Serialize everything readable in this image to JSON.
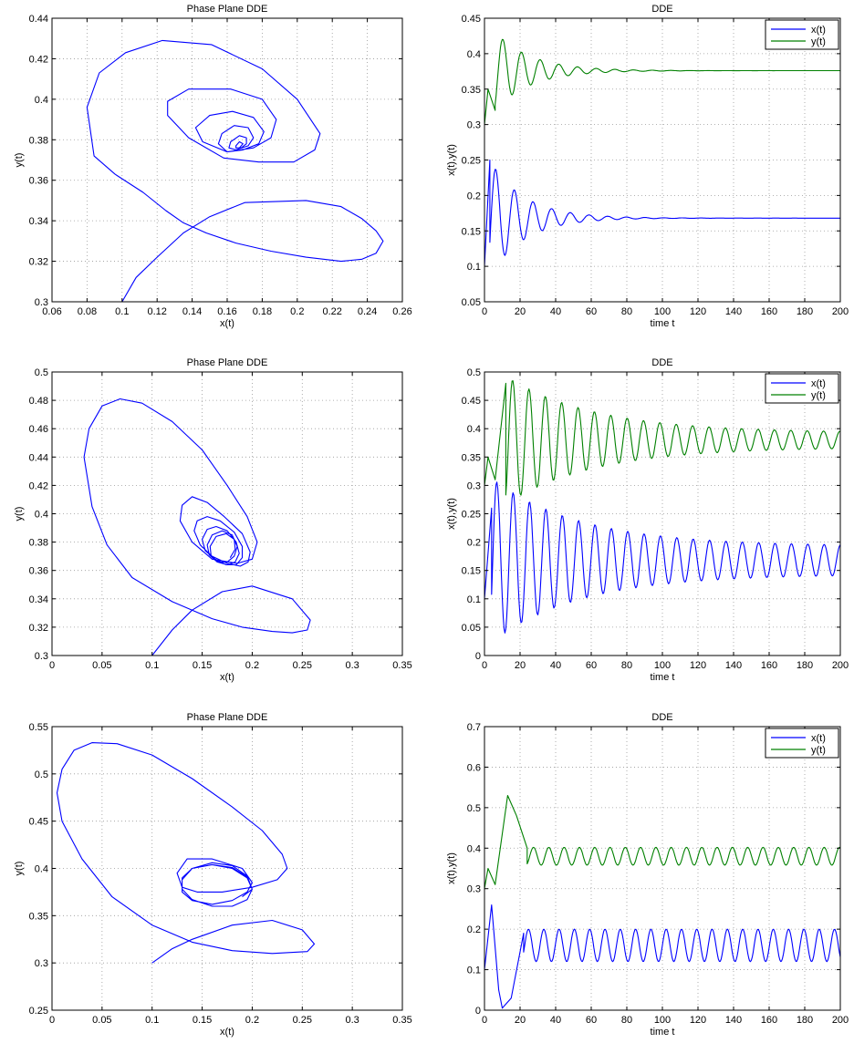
{
  "chart_data": [
    {
      "id": "pp1",
      "type": "line",
      "kind": "phase",
      "title": "Phase Plane DDE",
      "xlabel": "x(t)",
      "ylabel": "y(t)",
      "xlim": [
        0.06,
        0.26
      ],
      "ylim": [
        0.3,
        0.44
      ],
      "xticks": [
        0.06,
        0.08,
        0.1,
        0.12,
        0.14,
        0.16,
        0.18,
        0.2,
        0.22,
        0.24,
        0.26
      ],
      "yticks": [
        0.3,
        0.32,
        0.34,
        0.36,
        0.38,
        0.4,
        0.42,
        0.44
      ],
      "grid": true,
      "series": [
        {
          "color": "#0000ff",
          "x": [
            0.1,
            0.108,
            0.12,
            0.135,
            0.15,
            0.17,
            0.205,
            0.225,
            0.237,
            0.245,
            0.249,
            0.245,
            0.237,
            0.225,
            0.205,
            0.185,
            0.165,
            0.148,
            0.135,
            0.125,
            0.112,
            0.096,
            0.084,
            0.08,
            0.087,
            0.102,
            0.123,
            0.151,
            0.18,
            0.2,
            0.213,
            0.21,
            0.198,
            0.178,
            0.158,
            0.138,
            0.126,
            0.126,
            0.138,
            0.162,
            0.18,
            0.188,
            0.185,
            0.175,
            0.16,
            0.146,
            0.142,
            0.15,
            0.163,
            0.175,
            0.181,
            0.178,
            0.169,
            0.16,
            0.155,
            0.157,
            0.164,
            0.172,
            0.175,
            0.172,
            0.165,
            0.161,
            0.162,
            0.167,
            0.171,
            0.171,
            0.168,
            0.165,
            0.165,
            0.167,
            0.169,
            0.168,
            0.167,
            0.167
          ],
          "y": [
            0.3,
            0.312,
            0.322,
            0.334,
            0.342,
            0.349,
            0.35,
            0.347,
            0.341,
            0.335,
            0.33,
            0.324,
            0.321,
            0.32,
            0.322,
            0.325,
            0.329,
            0.334,
            0.339,
            0.345,
            0.354,
            0.363,
            0.372,
            0.396,
            0.413,
            0.423,
            0.429,
            0.427,
            0.415,
            0.4,
            0.383,
            0.375,
            0.369,
            0.369,
            0.371,
            0.381,
            0.392,
            0.399,
            0.405,
            0.405,
            0.4,
            0.39,
            0.381,
            0.376,
            0.374,
            0.379,
            0.386,
            0.392,
            0.394,
            0.391,
            0.384,
            0.378,
            0.375,
            0.374,
            0.378,
            0.383,
            0.387,
            0.386,
            0.381,
            0.377,
            0.375,
            0.376,
            0.379,
            0.382,
            0.381,
            0.378,
            0.376,
            0.376,
            0.377,
            0.379,
            0.378,
            0.377,
            0.376,
            0.376
          ]
        }
      ]
    },
    {
      "id": "ts1",
      "type": "line",
      "kind": "time",
      "title": "DDE",
      "xlabel": "time t",
      "ylabel": "x(t),y(t)",
      "xlim": [
        0,
        200
      ],
      "ylim": [
        0.05,
        0.45
      ],
      "xticks": [
        0,
        20,
        40,
        60,
        80,
        100,
        120,
        140,
        160,
        180,
        200
      ],
      "yticks": [
        0.05,
        0.1,
        0.15,
        0.2,
        0.25,
        0.3,
        0.35,
        0.4,
        0.45
      ],
      "grid": true,
      "legend": "top-right",
      "series": [
        {
          "name": "x(t)",
          "color": "#0000ff",
          "model": {
            "offset": 0.168,
            "amp": 0.082,
            "period": 10.5,
            "decay": 0.052,
            "phase": -2.0,
            "t0": 3,
            "pre": [
              [
                0,
                0.1
              ],
              [
                3,
                0.25
              ]
            ]
          }
        },
        {
          "name": "y(t)",
          "color": "#008000",
          "model": {
            "offset": 0.376,
            "amp": 0.055,
            "period": 10.5,
            "decay": 0.05,
            "phase": -2.6,
            "t0": 6,
            "pre": [
              [
                0,
                0.3
              ],
              [
                2,
                0.35
              ],
              [
                6,
                0.32
              ]
            ]
          }
        }
      ]
    },
    {
      "id": "pp2",
      "type": "line",
      "kind": "phase",
      "title": "Phase Plane DDE",
      "xlabel": "x(t)",
      "ylabel": "y(t)",
      "xlim": [
        0,
        0.35
      ],
      "ylim": [
        0.3,
        0.5
      ],
      "xticks": [
        0,
        0.05,
        0.1,
        0.15,
        0.2,
        0.25,
        0.3,
        0.35
      ],
      "yticks": [
        0.3,
        0.32,
        0.34,
        0.36,
        0.38,
        0.4,
        0.42,
        0.44,
        0.46,
        0.48,
        0.5
      ],
      "grid": true,
      "series": [
        {
          "color": "#0000ff",
          "x": [
            0.1,
            0.12,
            0.14,
            0.17,
            0.2,
            0.24,
            0.258,
            0.255,
            0.24,
            0.22,
            0.19,
            0.16,
            0.12,
            0.08,
            0.055,
            0.04,
            0.032,
            0.037,
            0.05,
            0.068,
            0.09,
            0.12,
            0.15,
            0.175,
            0.195,
            0.205,
            0.2,
            0.185,
            0.16,
            0.14,
            0.128,
            0.13,
            0.14,
            0.155,
            0.172,
            0.19,
            0.198,
            0.196,
            0.188,
            0.175,
            0.16,
            0.148,
            0.142,
            0.145,
            0.155,
            0.168,
            0.182,
            0.19,
            0.19,
            0.184,
            0.174,
            0.163,
            0.153,
            0.15,
            0.155,
            0.164,
            0.175,
            0.184,
            0.187,
            0.183,
            0.175,
            0.165,
            0.157,
            0.155,
            0.16,
            0.17,
            0.18,
            0.185,
            0.182,
            0.175,
            0.166,
            0.159,
            0.158,
            0.164,
            0.174,
            0.182,
            0.183,
            0.178
          ],
          "y": [
            0.3,
            0.318,
            0.332,
            0.345,
            0.349,
            0.34,
            0.325,
            0.318,
            0.316,
            0.317,
            0.32,
            0.326,
            0.338,
            0.355,
            0.378,
            0.405,
            0.44,
            0.46,
            0.476,
            0.481,
            0.478,
            0.465,
            0.445,
            0.42,
            0.398,
            0.38,
            0.368,
            0.365,
            0.368,
            0.38,
            0.395,
            0.406,
            0.412,
            0.408,
            0.398,
            0.386,
            0.373,
            0.366,
            0.363,
            0.365,
            0.37,
            0.378,
            0.388,
            0.395,
            0.398,
            0.395,
            0.387,
            0.377,
            0.369,
            0.364,
            0.364,
            0.368,
            0.374,
            0.382,
            0.389,
            0.391,
            0.388,
            0.38,
            0.372,
            0.366,
            0.364,
            0.366,
            0.371,
            0.378,
            0.385,
            0.388,
            0.385,
            0.377,
            0.37,
            0.366,
            0.366,
            0.37,
            0.377,
            0.384,
            0.386,
            0.382,
            0.375,
            0.369
          ]
        }
      ]
    },
    {
      "id": "ts2",
      "type": "line",
      "kind": "time",
      "title": "DDE",
      "xlabel": "time t",
      "ylabel": "x(t),y(t)",
      "xlim": [
        0,
        200
      ],
      "ylim": [
        0,
        0.5
      ],
      "xticks": [
        0,
        20,
        40,
        60,
        80,
        100,
        120,
        140,
        160,
        180,
        200
      ],
      "yticks": [
        0,
        0.05,
        0.1,
        0.15,
        0.2,
        0.25,
        0.3,
        0.35,
        0.4,
        0.45,
        0.5
      ],
      "grid": true,
      "legend": "top-right",
      "series": [
        {
          "name": "x(t)",
          "color": "#0000ff",
          "model": {
            "offset": 0.168,
            "amp": 0.12,
            "period": 9.2,
            "decay": 0.02,
            "floor": 0.025,
            "phase": -2.0,
            "t0": 4,
            "pre": [
              [
                0,
                0.1
              ],
              [
                4,
                0.26
              ]
            ]
          }
        },
        {
          "name": "y(t)",
          "color": "#008000",
          "model": {
            "offset": 0.38,
            "amp": 0.1,
            "period": 9.2,
            "decay": 0.02,
            "floor": 0.013,
            "phase": -2.6,
            "t0": 12,
            "pre": [
              [
                0,
                0.3
              ],
              [
                2,
                0.35
              ],
              [
                6,
                0.31
              ],
              [
                12,
                0.48
              ]
            ]
          }
        }
      ]
    },
    {
      "id": "pp3",
      "type": "line",
      "kind": "phase",
      "title": "Phase Plane DDE",
      "xlabel": "x(t)",
      "ylabel": "y(t)",
      "xlim": [
        0,
        0.35
      ],
      "ylim": [
        0.25,
        0.55
      ],
      "xticks": [
        0,
        0.05,
        0.1,
        0.15,
        0.2,
        0.25,
        0.3,
        0.35
      ],
      "yticks": [
        0.25,
        0.3,
        0.35,
        0.4,
        0.45,
        0.5,
        0.55
      ],
      "grid": true,
      "series": [
        {
          "color": "#0000ff",
          "x": [
            0.1,
            0.12,
            0.14,
            0.18,
            0.22,
            0.25,
            0.262,
            0.255,
            0.22,
            0.18,
            0.14,
            0.1,
            0.06,
            0.03,
            0.01,
            0.005,
            0.01,
            0.022,
            0.04,
            0.065,
            0.1,
            0.14,
            0.18,
            0.21,
            0.23,
            0.235,
            0.225,
            0.2,
            0.17,
            0.145,
            0.13,
            0.125,
            0.135,
            0.16,
            0.19,
            0.2,
            0.195,
            0.18,
            0.16,
            0.14,
            0.13,
            0.13,
            0.14,
            0.16,
            0.18,
            0.195,
            0.2,
            0.195,
            0.18,
            0.16,
            0.14,
            0.13,
            0.13,
            0.14,
            0.16,
            0.18,
            0.195,
            0.2,
            0.195,
            0.18,
            0.16,
            0.14,
            0.13,
            0.13,
            0.14,
            0.16,
            0.18,
            0.195,
            0.2,
            0.19
          ],
          "y": [
            0.3,
            0.315,
            0.325,
            0.34,
            0.345,
            0.335,
            0.32,
            0.312,
            0.31,
            0.313,
            0.322,
            0.34,
            0.37,
            0.41,
            0.45,
            0.48,
            0.505,
            0.525,
            0.533,
            0.532,
            0.52,
            0.495,
            0.465,
            0.44,
            0.415,
            0.4,
            0.388,
            0.38,
            0.375,
            0.375,
            0.38,
            0.395,
            0.41,
            0.41,
            0.4,
            0.385,
            0.375,
            0.366,
            0.362,
            0.366,
            0.375,
            0.388,
            0.4,
            0.406,
            0.403,
            0.392,
            0.378,
            0.367,
            0.36,
            0.36,
            0.367,
            0.378,
            0.39,
            0.4,
            0.404,
            0.401,
            0.391,
            0.378,
            0.367,
            0.36,
            0.36,
            0.367,
            0.378,
            0.39,
            0.4,
            0.404,
            0.4,
            0.39,
            0.378,
            0.37
          ]
        }
      ]
    },
    {
      "id": "ts3",
      "type": "line",
      "kind": "time",
      "title": "DDE",
      "xlabel": "time t",
      "ylabel": "x(t),y(t)",
      "xlim": [
        0,
        200
      ],
      "ylim": [
        0,
        0.7
      ],
      "xticks": [
        0,
        20,
        40,
        60,
        80,
        100,
        120,
        140,
        160,
        180,
        200
      ],
      "yticks": [
        0,
        0.1,
        0.2,
        0.3,
        0.4,
        0.5,
        0.6,
        0.7
      ],
      "grid": true,
      "legend": "top-right",
      "series": [
        {
          "name": "x(t)",
          "color": "#0000ff",
          "model": {
            "offset": 0.16,
            "amp": 0.04,
            "period": 8.6,
            "decay": 0,
            "phase": -2.0,
            "t0": 22,
            "pre": [
              [
                0,
                0.1
              ],
              [
                4,
                0.26
              ],
              [
                8,
                0.05
              ],
              [
                10,
                0.005
              ],
              [
                15,
                0.03
              ],
              [
                22,
                0.19
              ]
            ]
          }
        },
        {
          "name": "y(t)",
          "color": "#008000",
          "model": {
            "offset": 0.38,
            "amp": 0.022,
            "period": 8.6,
            "decay": 0,
            "phase": -2.6,
            "t0": 24,
            "pre": [
              [
                0,
                0.3
              ],
              [
                2,
                0.35
              ],
              [
                6,
                0.31
              ],
              [
                13,
                0.53
              ],
              [
                18,
                0.48
              ],
              [
                24,
                0.4
              ]
            ]
          }
        }
      ]
    }
  ]
}
